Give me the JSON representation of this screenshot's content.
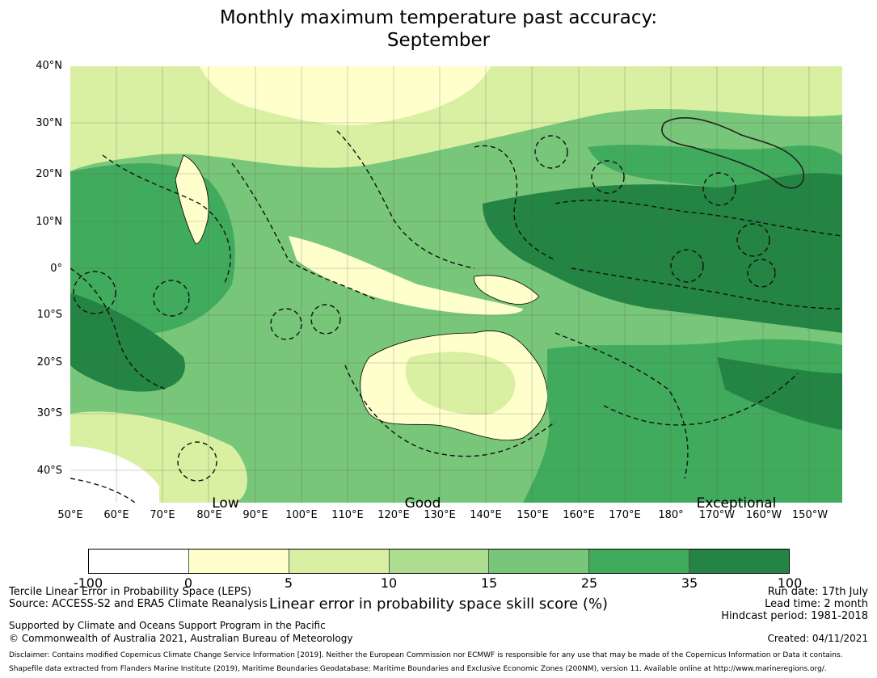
{
  "title": {
    "line1": "Monthly maximum temperature past accuracy:",
    "line2": "September"
  },
  "map": {
    "y_ticks": [
      "40°N",
      "30°N",
      "20°N",
      "10°N",
      "0°",
      "10°S",
      "20°S",
      "30°S",
      "40°S"
    ],
    "x_ticks": [
      "50°E",
      "60°E",
      "70°E",
      "80°E",
      "90°E",
      "100°E",
      "110°E",
      "120°E",
      "130°E",
      "140°E",
      "150°E",
      "160°E",
      "170°E",
      "180°",
      "170°W",
      "160°W",
      "150°W"
    ],
    "category_labels": [
      "Low",
      "Good",
      "Exceptional"
    ]
  },
  "legend": {
    "ticks": [
      "-100",
      "0",
      "5",
      "10",
      "15",
      "25",
      "35",
      "100"
    ],
    "colors": [
      "#ffffff",
      "#ffffcc",
      "#d9f0a3",
      "#addd8e",
      "#78c679",
      "#41ab5d",
      "#238443"
    ],
    "title": "Linear error in probability space skill score (%)"
  },
  "info_left": {
    "line1": "Tercile Linear Error in Probability Space (LEPS)",
    "line2": "Source: ACCESS-S2 and ERA5 Climate Reanalysis",
    "line3": "Supported by Climate and Oceans Support Program in the Pacific",
    "line4": "© Commonwealth of Australia 2021, Australian Bureau of Meteorology"
  },
  "info_right": {
    "run_date": "Run date: 17th July",
    "lead_time": "Lead time: 2 month",
    "hindcast": "Hindcast period: 1981-2018",
    "created": "Created: 04/11/2021"
  },
  "disclaimer": {
    "line1": "Disclaimer: Contains modified Copernicus Climate Change Service Information [2019]. Neither the European Commission nor ECMWF is responsible for any use that may be made of the Copernicus Information or Data it contains.",
    "line2": "Shapefile data extracted from Flanders Marine Institute (2019), Maritime Boundaries Geodatabase: Maritime Boundaries and Exclusive Economic Zones (200NM), version 11. Available online at http://www.marineregions.org/."
  }
}
